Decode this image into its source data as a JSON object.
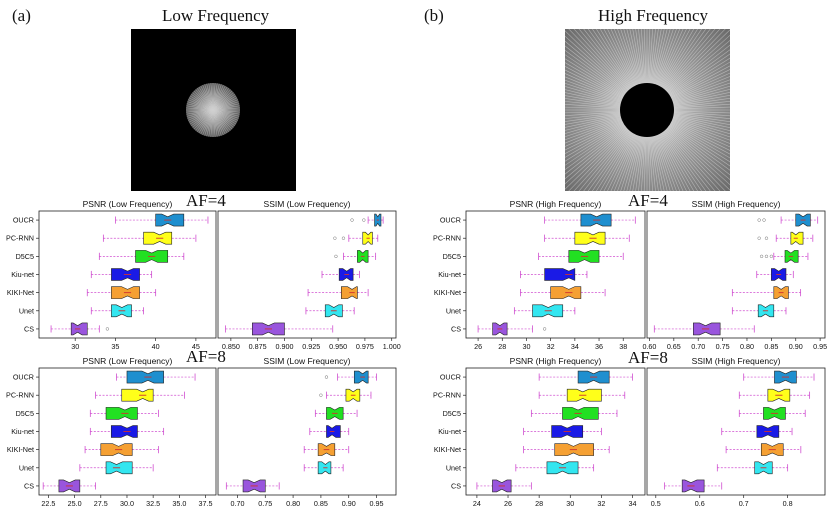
{
  "panels": {
    "a": {
      "label": "(a)",
      "title": "Low Frequency",
      "af_labels": [
        "AF=4",
        "AF=8"
      ]
    },
    "b": {
      "label": "(b)",
      "title": "High Frequency",
      "af_labels": [
        "AF=4",
        "AF=8"
      ]
    }
  },
  "colors": {
    "OUCR": "#1f8fcf",
    "PC-RNN": "#ffff1a",
    "D5C5": "#22e022",
    "Kiu-net": "#1a1ae6",
    "KIKI-Net": "#f5a033",
    "Unet": "#33e6f0",
    "CS": "#9955dd",
    "whisker": "#d04fd0",
    "median": "#d03030"
  },
  "chart_data": [
    {
      "type": "box",
      "title": "PSNR (Low Frequency)",
      "group": "AF=4",
      "categories": [
        "OUCR",
        "PC-RNN",
        "D5C5",
        "Kiu-net",
        "KIKI-Net",
        "Unet",
        "CS"
      ],
      "xticks": [
        30,
        35,
        40,
        45
      ],
      "xlim": [
        25.5,
        47.5
      ],
      "boxes": [
        {
          "min": 35,
          "q1": 40,
          "median": 41.5,
          "q3": 43.5,
          "max": 46.5,
          "outliers": []
        },
        {
          "min": 33.5,
          "q1": 38.5,
          "median": 40.5,
          "q3": 42,
          "max": 45,
          "outliers": []
        },
        {
          "min": 33,
          "q1": 37.5,
          "median": 39.5,
          "q3": 41.5,
          "max": 43.5,
          "outliers": []
        },
        {
          "min": 32,
          "q1": 34.5,
          "median": 36.5,
          "q3": 38,
          "max": 39.5,
          "outliers": []
        },
        {
          "min": 31.5,
          "q1": 34.5,
          "median": 36.5,
          "q3": 38,
          "max": 40,
          "outliers": []
        },
        {
          "min": 32,
          "q1": 34.5,
          "median": 35.8,
          "q3": 37,
          "max": 38.5,
          "outliers": []
        },
        {
          "min": 27,
          "q1": 29.5,
          "median": 30.3,
          "q3": 31.5,
          "max": 33,
          "outliers": [
            34
          ]
        }
      ]
    },
    {
      "type": "box",
      "title": "SSIM (Low Frequency)",
      "group": "AF=4",
      "categories": [
        "OUCR",
        "PC-RNN",
        "D5C5",
        "Kiu-net",
        "KIKI-Net",
        "Unet",
        "CS"
      ],
      "xticks": [
        0.85,
        0.875,
        0.9,
        0.925,
        0.95,
        0.975,
        1.0
      ],
      "xlim": [
        0.838,
        1.004
      ],
      "boxes": [
        {
          "min": 0.978,
          "q1": 0.984,
          "median": 0.987,
          "q3": 0.99,
          "max": 0.992,
          "outliers": [
            0.963,
            0.974
          ]
        },
        {
          "min": 0.96,
          "q1": 0.973,
          "median": 0.978,
          "q3": 0.982,
          "max": 0.987,
          "outliers": [
            0.947,
            0.955
          ]
        },
        {
          "min": 0.955,
          "q1": 0.968,
          "median": 0.973,
          "q3": 0.978,
          "max": 0.985,
          "outliers": [
            0.948
          ]
        },
        {
          "min": 0.935,
          "q1": 0.951,
          "median": 0.958,
          "q3": 0.964,
          "max": 0.97,
          "outliers": []
        },
        {
          "min": 0.922,
          "q1": 0.953,
          "median": 0.963,
          "q3": 0.968,
          "max": 0.978,
          "outliers": []
        },
        {
          "min": 0.92,
          "q1": 0.938,
          "median": 0.946,
          "q3": 0.954,
          "max": 0.965,
          "outliers": []
        },
        {
          "min": 0.845,
          "q1": 0.87,
          "median": 0.885,
          "q3": 0.9,
          "max": 0.945,
          "outliers": []
        }
      ]
    },
    {
      "type": "box",
      "title": "PSNR (High Frequency)",
      "group": "AF=4",
      "categories": [
        "OUCR",
        "PC-RNN",
        "D5C5",
        "Kiu-net",
        "KIKI-Net",
        "Unet",
        "CS"
      ],
      "xticks": [
        26,
        28,
        30,
        32,
        34,
        36,
        38
      ],
      "xlim": [
        25,
        39.8
      ],
      "boxes": [
        {
          "min": 31.5,
          "q1": 34.5,
          "median": 35.8,
          "q3": 37,
          "max": 39,
          "outliers": []
        },
        {
          "min": 31.5,
          "q1": 34,
          "median": 35.5,
          "q3": 36.5,
          "max": 38.5,
          "outliers": []
        },
        {
          "min": 31,
          "q1": 33.5,
          "median": 34.8,
          "q3": 36,
          "max": 38,
          "outliers": []
        },
        {
          "min": 29.5,
          "q1": 31.5,
          "median": 33.5,
          "q3": 34,
          "max": 35,
          "outliers": []
        },
        {
          "min": 29.5,
          "q1": 32,
          "median": 33.5,
          "q3": 34.5,
          "max": 36.5,
          "outliers": []
        },
        {
          "min": 29,
          "q1": 30.5,
          "median": 31.8,
          "q3": 33,
          "max": 34,
          "outliers": []
        },
        {
          "min": 26,
          "q1": 27.2,
          "median": 27.8,
          "q3": 28.4,
          "max": 30.5,
          "outliers": [
            31.5
          ]
        }
      ]
    },
    {
      "type": "box",
      "title": "SSIM (High Frequency)",
      "group": "AF=4",
      "categories": [
        "OUCR",
        "PC-RNN",
        "D5C5",
        "Kiu-net",
        "KIKI-Net",
        "Unet",
        "CS"
      ],
      "xticks": [
        0.6,
        0.65,
        0.7,
        0.75,
        0.8,
        0.85,
        0.9,
        0.95
      ],
      "xlim": [
        0.595,
        0.96
      ],
      "boxes": [
        {
          "min": 0.87,
          "q1": 0.9,
          "median": 0.915,
          "q3": 0.93,
          "max": 0.945,
          "outliers": [
            0.825,
            0.835
          ]
        },
        {
          "min": 0.86,
          "q1": 0.89,
          "median": 0.9,
          "q3": 0.915,
          "max": 0.935,
          "outliers": [
            0.825,
            0.84
          ]
        },
        {
          "min": 0.855,
          "q1": 0.878,
          "median": 0.89,
          "q3": 0.905,
          "max": 0.925,
          "outliers": [
            0.83,
            0.84,
            0.85
          ]
        },
        {
          "min": 0.82,
          "q1": 0.85,
          "median": 0.865,
          "q3": 0.88,
          "max": 0.895,
          "outliers": []
        },
        {
          "min": 0.77,
          "q1": 0.855,
          "median": 0.87,
          "q3": 0.885,
          "max": 0.91,
          "outliers": []
        },
        {
          "min": 0.77,
          "q1": 0.823,
          "median": 0.838,
          "q3": 0.855,
          "max": 0.88,
          "outliers": []
        },
        {
          "min": 0.61,
          "q1": 0.69,
          "median": 0.715,
          "q3": 0.745,
          "max": 0.815,
          "outliers": []
        }
      ]
    },
    {
      "type": "box",
      "title": "PSNR (Low Frequency)",
      "group": "AF=8",
      "categories": [
        "OUCR",
        "PC-RNN",
        "D5C5",
        "Kiu-net",
        "KIKI-Net",
        "Unet",
        "CS"
      ],
      "xticks": [
        22.5,
        25.0,
        27.5,
        30.0,
        32.5,
        35.0,
        37.5
      ],
      "xlim": [
        21.6,
        38.5
      ],
      "boxes": [
        {
          "min": 29,
          "q1": 30,
          "median": 32,
          "q3": 33.5,
          "max": 36.5,
          "outliers": []
        },
        {
          "min": 27,
          "q1": 29.5,
          "median": 31.5,
          "q3": 32.5,
          "max": 35.5,
          "outliers": []
        },
        {
          "min": 26.5,
          "q1": 28,
          "median": 29.8,
          "q3": 31,
          "max": 33,
          "outliers": []
        },
        {
          "min": 26.5,
          "q1": 28.5,
          "median": 30,
          "q3": 31,
          "max": 33.5,
          "outliers": []
        },
        {
          "min": 26,
          "q1": 27.5,
          "median": 29.2,
          "q3": 30.5,
          "max": 33,
          "outliers": []
        },
        {
          "min": 25.5,
          "q1": 28,
          "median": 29,
          "q3": 30.5,
          "max": 32.5,
          "outliers": []
        },
        {
          "min": 22,
          "q1": 23.5,
          "median": 24.5,
          "q3": 25.5,
          "max": 27,
          "outliers": []
        }
      ]
    },
    {
      "type": "box",
      "title": "SSIM (Low Frequency)",
      "group": "AF=8",
      "categories": [
        "OUCR",
        "PC-RNN",
        "D5C5",
        "Kiu-net",
        "KIKI-Net",
        "Unet",
        "CS"
      ],
      "xticks": [
        0.7,
        0.75,
        0.8,
        0.85,
        0.9,
        0.95
      ],
      "xlim": [
        0.665,
        0.985
      ],
      "boxes": [
        {
          "min": 0.88,
          "q1": 0.91,
          "median": 0.925,
          "q3": 0.935,
          "max": 0.95,
          "outliers": [
            0.86
          ]
        },
        {
          "min": 0.86,
          "q1": 0.895,
          "median": 0.908,
          "q3": 0.92,
          "max": 0.94,
          "outliers": [
            0.85
          ]
        },
        {
          "min": 0.84,
          "q1": 0.86,
          "median": 0.875,
          "q3": 0.89,
          "max": 0.915,
          "outliers": []
        },
        {
          "min": 0.83,
          "q1": 0.86,
          "median": 0.87,
          "q3": 0.885,
          "max": 0.9,
          "outliers": []
        },
        {
          "min": 0.82,
          "q1": 0.845,
          "median": 0.86,
          "q3": 0.875,
          "max": 0.9,
          "outliers": []
        },
        {
          "min": 0.82,
          "q1": 0.845,
          "median": 0.858,
          "q3": 0.868,
          "max": 0.89,
          "outliers": []
        },
        {
          "min": 0.68,
          "q1": 0.71,
          "median": 0.73,
          "q3": 0.75,
          "max": 0.775,
          "outliers": []
        }
      ]
    },
    {
      "type": "box",
      "title": "PSNR (High Frequency)",
      "group": "AF=8",
      "categories": [
        "OUCR",
        "PC-RNN",
        "D5C5",
        "Kiu-net",
        "KIKI-Net",
        "Unet",
        "CS"
      ],
      "xticks": [
        24,
        26,
        28,
        30,
        32,
        34
      ],
      "xlim": [
        23.3,
        34.8
      ],
      "boxes": [
        {
          "min": 28,
          "q1": 30.5,
          "median": 31.5,
          "q3": 32.5,
          "max": 34,
          "outliers": []
        },
        {
          "min": 28,
          "q1": 29.8,
          "median": 30.8,
          "q3": 32,
          "max": 33.5,
          "outliers": []
        },
        {
          "min": 27.5,
          "q1": 29.5,
          "median": 30.5,
          "q3": 31.8,
          "max": 33,
          "outliers": []
        },
        {
          "min": 27,
          "q1": 28.8,
          "median": 29.8,
          "q3": 30.8,
          "max": 32,
          "outliers": []
        },
        {
          "min": 27,
          "q1": 29,
          "median": 30.2,
          "q3": 31.5,
          "max": 32.5,
          "outliers": []
        },
        {
          "min": 26.5,
          "q1": 28.5,
          "median": 29.5,
          "q3": 30.5,
          "max": 31.5,
          "outliers": []
        },
        {
          "min": 24,
          "q1": 25,
          "median": 25.6,
          "q3": 26.2,
          "max": 27.5,
          "outliers": []
        }
      ]
    },
    {
      "type": "box",
      "title": "SSIM (High Frequency)",
      "group": "AF=8",
      "categories": [
        "OUCR",
        "PC-RNN",
        "D5C5",
        "Kiu-net",
        "KIKI-Net",
        "Unet",
        "CS"
      ],
      "xticks": [
        0.5,
        0.6,
        0.7,
        0.8
      ],
      "xlim": [
        0.48,
        0.885
      ],
      "boxes": [
        {
          "min": 0.7,
          "q1": 0.77,
          "median": 0.795,
          "q3": 0.82,
          "max": 0.86,
          "outliers": []
        },
        {
          "min": 0.69,
          "q1": 0.755,
          "median": 0.78,
          "q3": 0.805,
          "max": 0.85,
          "outliers": []
        },
        {
          "min": 0.69,
          "q1": 0.745,
          "median": 0.77,
          "q3": 0.795,
          "max": 0.84,
          "outliers": []
        },
        {
          "min": 0.65,
          "q1": 0.73,
          "median": 0.755,
          "q3": 0.78,
          "max": 0.81,
          "outliers": []
        },
        {
          "min": 0.66,
          "q1": 0.74,
          "median": 0.765,
          "q3": 0.79,
          "max": 0.83,
          "outliers": []
        },
        {
          "min": 0.64,
          "q1": 0.725,
          "median": 0.745,
          "q3": 0.765,
          "max": 0.8,
          "outliers": []
        },
        {
          "min": 0.52,
          "q1": 0.56,
          "median": 0.58,
          "q3": 0.61,
          "max": 0.65,
          "outliers": []
        }
      ]
    }
  ]
}
